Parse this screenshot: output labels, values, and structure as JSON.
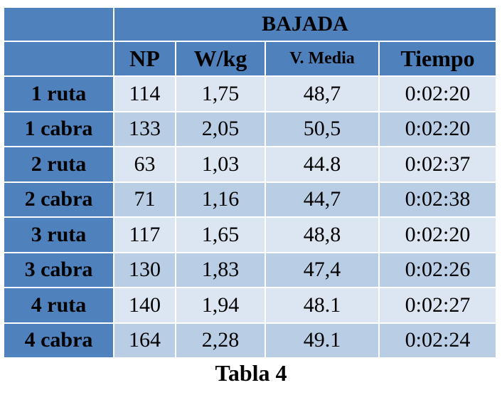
{
  "table": {
    "title": "BAJADA",
    "headers": [
      "NP",
      "W/kg",
      "V. Media",
      "Tiempo"
    ],
    "rows": [
      [
        "1 ruta",
        "114",
        "1,75",
        "48,7",
        "0:02:20"
      ],
      [
        "1 cabra",
        "133",
        "2,05",
        "50,5",
        "0:02:20"
      ],
      [
        "2 ruta",
        "63",
        "1,03",
        "44.8",
        "0:02:37"
      ],
      [
        "2 cabra",
        "71",
        "1,16",
        "44,7",
        "0:02:38"
      ],
      [
        "3 ruta",
        "117",
        "1,65",
        "48,8",
        "0:02:20"
      ],
      [
        "3 cabra",
        "130",
        "1,83",
        "47,4",
        "0:02:26"
      ],
      [
        "4 ruta",
        "140",
        "1,94",
        "48.1",
        "0:02:27"
      ],
      [
        "4 cabra",
        "164",
        "2,28",
        "49.1",
        "0:02:24"
      ]
    ]
  },
  "caption": "Tabla 4"
}
